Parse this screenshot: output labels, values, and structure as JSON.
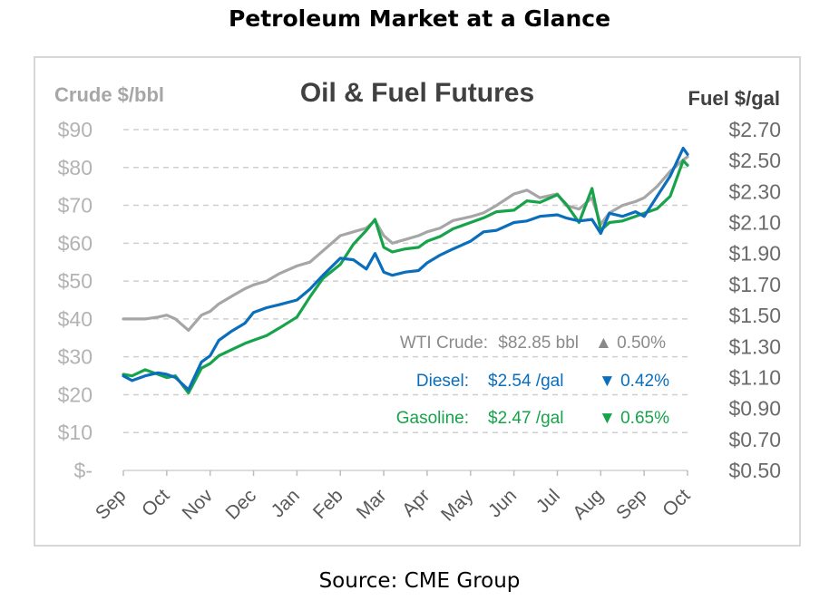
{
  "page": {
    "title": "Petroleum Market at a Glance",
    "source": "Source: CME Group"
  },
  "colors": {
    "crude": "#a6a6a6",
    "diesel": "#0a6ebd",
    "gasoline": "#16a34a"
  },
  "annotations": {
    "crude": {
      "label": "WTI Crude:",
      "price": "$82.85 bbl",
      "arrow": "▲",
      "change": "0.50%"
    },
    "diesel": {
      "label": "Diesel:",
      "price": "$2.54 /gal",
      "arrow": "▼",
      "change": "0.42%"
    },
    "gasoline": {
      "label": "Gasoline:",
      "price": "$2.47 /gal",
      "arrow": "▼",
      "change": "0.65%"
    }
  },
  "chart_data": {
    "type": "line",
    "title": "Oil & Fuel Futures",
    "ylabel_left": "Crude $/bbl",
    "ylabel_right": "Fuel $/gal",
    "ylim_left": [
      0,
      90
    ],
    "ylim_right": [
      0.5,
      2.7
    ],
    "yticks_left": [
      "$-",
      "$10",
      "$20",
      "$30",
      "$40",
      "$50",
      "$60",
      "$70",
      "$80",
      "$90"
    ],
    "yticks_right": [
      "$0.50",
      "$0.70",
      "$0.90",
      "$1.10",
      "$1.30",
      "$1.50",
      "$1.70",
      "$1.90",
      "$2.10",
      "$2.30",
      "$2.50",
      "$2.70"
    ],
    "categories": [
      "Sep",
      "Oct",
      "Nov",
      "Dec",
      "Jan",
      "Feb",
      "Mar",
      "Apr",
      "May",
      "Jun",
      "Jul",
      "Aug",
      "Sep",
      "Oct"
    ],
    "grid": true,
    "x": [
      0,
      0.2,
      0.5,
      0.8,
      1.0,
      1.2,
      1.5,
      1.8,
      2.0,
      2.2,
      2.5,
      2.8,
      3.0,
      3.3,
      3.6,
      4.0,
      4.3,
      4.6,
      5.0,
      5.3,
      5.6,
      5.8,
      6.0,
      6.2,
      6.5,
      6.8,
      7.0,
      7.3,
      7.6,
      8.0,
      8.3,
      8.6,
      9.0,
      9.3,
      9.6,
      10.0,
      10.2,
      10.5,
      10.8,
      11.0,
      11.2,
      11.5,
      11.8,
      12.0,
      12.3,
      12.6,
      12.9,
      13.0
    ],
    "series": [
      {
        "name": "WTI Crude",
        "axis": "left",
        "values": [
          40,
          40,
          40,
          40.5,
          41,
          40,
          37,
          41,
          42,
          44,
          46,
          48,
          49,
          50,
          52,
          54,
          55,
          58,
          62,
          63,
          64,
          66,
          62,
          60,
          61,
          62,
          63,
          64,
          66,
          67,
          68,
          70,
          73,
          74,
          72,
          73,
          70,
          69,
          72,
          65,
          68,
          70,
          71,
          72,
          75,
          79,
          82,
          82.85
        ]
      },
      {
        "name": "Diesel",
        "axis": "right",
        "values": [
          1.11,
          1.08,
          1.11,
          1.13,
          1.12,
          1.1,
          1.02,
          1.2,
          1.24,
          1.34,
          1.4,
          1.45,
          1.52,
          1.55,
          1.57,
          1.6,
          1.67,
          1.76,
          1.87,
          1.86,
          1.8,
          1.9,
          1.78,
          1.76,
          1.78,
          1.79,
          1.84,
          1.89,
          1.93,
          1.98,
          2.04,
          2.05,
          2.1,
          2.11,
          2.14,
          2.15,
          2.13,
          2.11,
          2.12,
          2.03,
          2.16,
          2.14,
          2.17,
          2.14,
          2.27,
          2.4,
          2.58,
          2.54
        ]
      },
      {
        "name": "Gasoline",
        "axis": "right",
        "values": [
          1.12,
          1.11,
          1.15,
          1.12,
          1.1,
          1.11,
          1.0,
          1.16,
          1.19,
          1.24,
          1.28,
          1.32,
          1.34,
          1.37,
          1.42,
          1.49,
          1.62,
          1.74,
          1.83,
          1.96,
          2.05,
          2.12,
          1.94,
          1.91,
          1.93,
          1.94,
          1.98,
          2.01,
          2.06,
          2.1,
          2.13,
          2.17,
          2.18,
          2.24,
          2.23,
          2.28,
          2.22,
          2.1,
          2.32,
          2.05,
          2.1,
          2.11,
          2.14,
          2.16,
          2.19,
          2.27,
          2.5,
          2.47
        ]
      }
    ]
  }
}
